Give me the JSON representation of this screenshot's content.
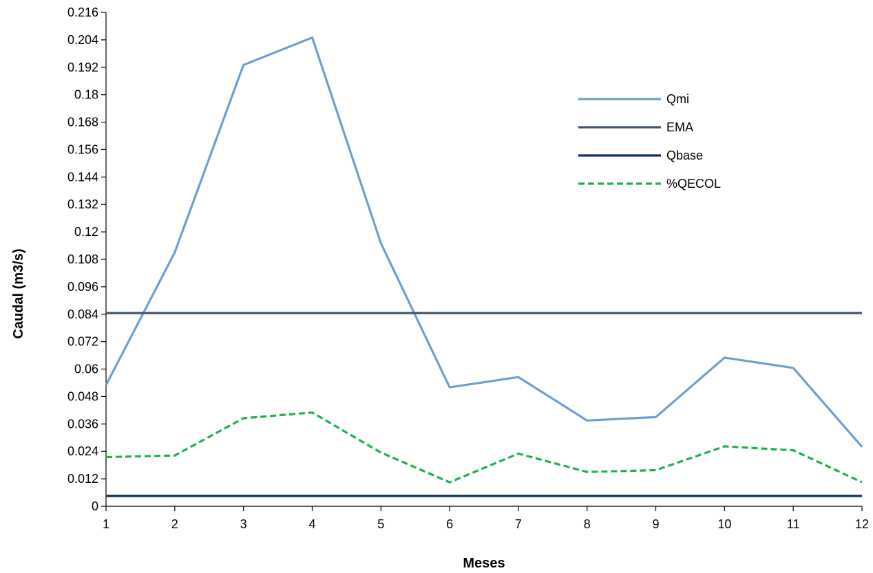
{
  "chart_data": {
    "type": "line",
    "title": "",
    "xlabel": "Meses",
    "ylabel": "Caudal (m3/s)",
    "x": [
      1,
      2,
      3,
      4,
      5,
      6,
      7,
      8,
      9,
      10,
      11,
      12
    ],
    "x_tick_labels": [
      "1",
      "2",
      "3",
      "4",
      "5",
      "6",
      "7",
      "8",
      "9",
      "10",
      "11",
      "12"
    ],
    "xlim": [
      1,
      12
    ],
    "ylim": [
      0,
      0.216
    ],
    "y_ticks": [
      0,
      0.012,
      0.024,
      0.036,
      0.048,
      0.06,
      0.072,
      0.084,
      0.096,
      0.108,
      0.12,
      0.132,
      0.144,
      0.156,
      0.168,
      0.18,
      0.192,
      0.204,
      0.216
    ],
    "y_tick_labels": [
      "0",
      "0.012",
      "0.024",
      "0.036",
      "0.048",
      "0.06",
      "0.072",
      "0.084",
      "0.096",
      "0.108",
      "0.12",
      "0.132",
      "0.144",
      "0.156",
      "0.168",
      "0.18",
      "0.192",
      "0.204",
      "0.216"
    ],
    "grid": false,
    "legend_position": "top-right",
    "series": [
      {
        "name": "Qmi",
        "color": "#6a9fd4",
        "style": "solid",
        "values": [
          0.053,
          0.111,
          0.193,
          0.205,
          0.115,
          0.052,
          0.0565,
          0.0375,
          0.039,
          0.065,
          0.0605,
          0.026
        ]
      },
      {
        "name": "EMA",
        "color": "#44546a",
        "style": "solid",
        "values": [
          0.0845,
          0.0845,
          0.0845,
          0.0845,
          0.0845,
          0.0845,
          0.0845,
          0.0845,
          0.0845,
          0.0845,
          0.0845,
          0.0845
        ]
      },
      {
        "name": "Qbase",
        "color": "#0e2f5a",
        "style": "solid",
        "values": [
          0.0045,
          0.0045,
          0.0045,
          0.0045,
          0.0045,
          0.0045,
          0.0045,
          0.0045,
          0.0045,
          0.0045,
          0.0045,
          0.0045
        ]
      },
      {
        "name": "%QECOL",
        "color": "#1eb050",
        "style": "dashed",
        "values": [
          0.0215,
          0.0222,
          0.0385,
          0.041,
          0.0235,
          0.0105,
          0.023,
          0.015,
          0.0158,
          0.0262,
          0.0245,
          0.0105
        ]
      }
    ]
  }
}
